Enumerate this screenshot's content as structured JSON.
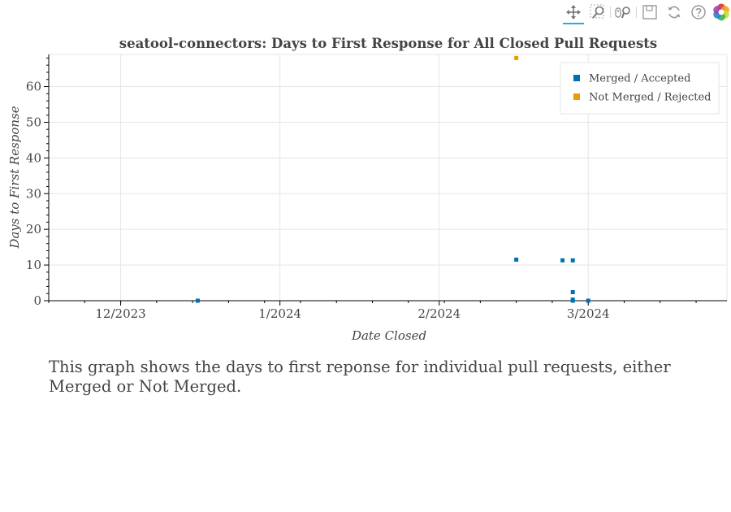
{
  "toolbar": {
    "tools": [
      {
        "name": "pan-tool",
        "icon": "pan-icon",
        "active": true
      },
      {
        "name": "box-zoom-tool",
        "icon": "box-zoom-icon",
        "active": false
      },
      {
        "name": "wheel-zoom-tool",
        "icon": "wheel-zoom-icon",
        "active": false
      },
      {
        "name": "save-tool",
        "icon": "save-icon",
        "active": false
      },
      {
        "name": "reset-tool",
        "icon": "reset-icon",
        "active": false
      },
      {
        "name": "help-tool",
        "icon": "help-icon",
        "active": false
      },
      {
        "name": "bokeh-logo",
        "icon": "bokeh-logo-icon",
        "active": false
      }
    ],
    "active_color": "#26aae1"
  },
  "chart_data": {
    "type": "scatter",
    "title": "seatool-connectors: Days to First Response for All Closed Pull Requests",
    "xlabel": "Date Closed",
    "ylabel": "Days to First Response",
    "x_axis_type": "datetime",
    "xlim": [
      "2023-11-17",
      "2024-03-28"
    ],
    "ylim": [
      0,
      69
    ],
    "x_ticks": [
      {
        "date": "2023-12-01",
        "label": "12/2023"
      },
      {
        "date": "2024-01-01",
        "label": "1/2024"
      },
      {
        "date": "2024-02-01",
        "label": "2/2024"
      },
      {
        "date": "2024-03-01",
        "label": "3/2024"
      }
    ],
    "y_ticks": [
      0,
      10,
      20,
      30,
      40,
      50,
      60
    ],
    "grid": true,
    "legend_position": "top-right",
    "series": [
      {
        "name": "Merged / Accepted",
        "color": "#0072b2",
        "points": [
          {
            "x": "2023-12-16",
            "y": 0
          },
          {
            "x": "2024-02-16",
            "y": 11.5
          },
          {
            "x": "2024-02-25",
            "y": 11.3
          },
          {
            "x": "2024-02-27",
            "y": 11.3
          },
          {
            "x": "2024-02-27",
            "y": 2.4
          },
          {
            "x": "2024-02-27",
            "y": 0.3
          },
          {
            "x": "2024-02-27",
            "y": 0
          },
          {
            "x": "2024-03-01",
            "y": 0
          }
        ]
      },
      {
        "name": "Not Merged / Rejected",
        "color": "#e69f00",
        "points": [
          {
            "x": "2024-02-16",
            "y": 68
          }
        ]
      }
    ]
  },
  "description": "This graph shows the days to first reponse for individual pull requests, either Merged or Not Merged."
}
